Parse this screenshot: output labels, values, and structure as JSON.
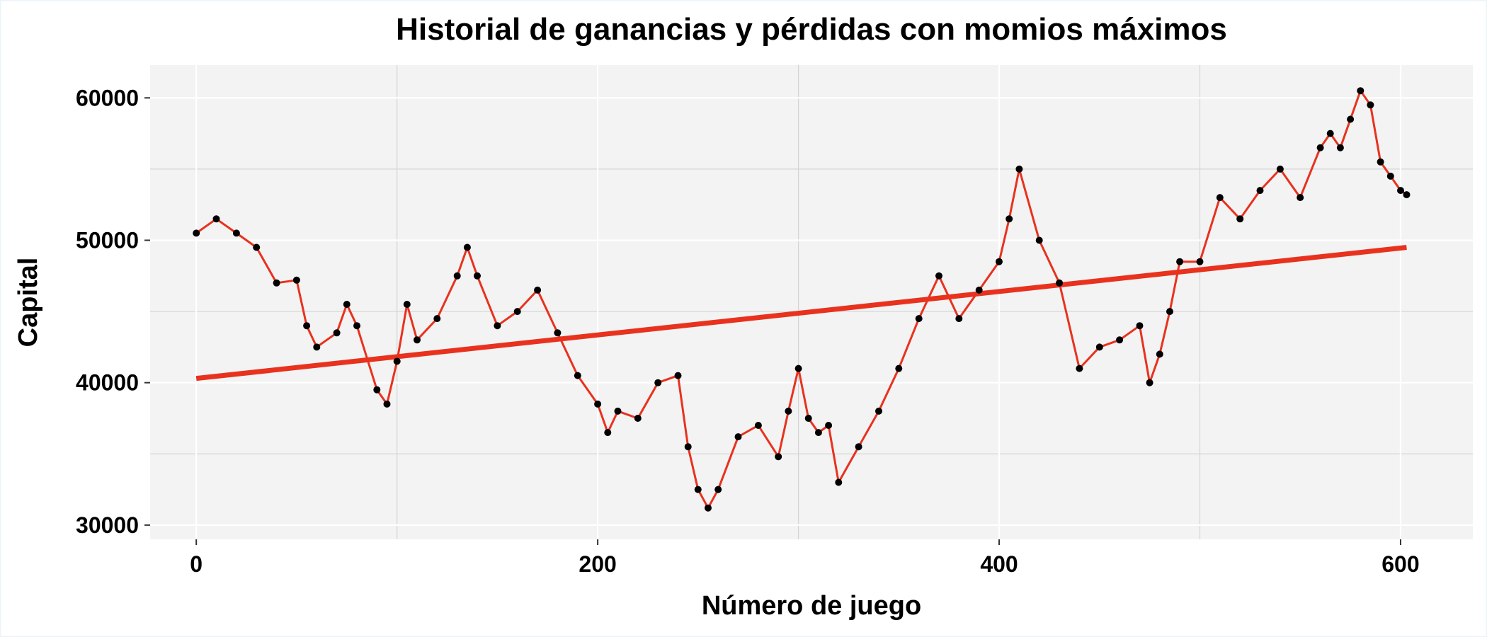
{
  "chart_data": {
    "type": "line",
    "title": "Historial de ganancias y pérdidas con momios máximos",
    "xlabel": "Número de juego",
    "ylabel": "Capital",
    "xlim": [
      -23,
      636
    ],
    "ylim": [
      29000,
      62300
    ],
    "xticks": [
      0,
      200,
      400,
      600
    ],
    "xtick_labels": [
      "0",
      "200",
      "400",
      "600"
    ],
    "yticks": [
      30000,
      40000,
      50000,
      60000
    ],
    "ytick_labels": [
      "30000",
      "40000",
      "50000",
      "60000"
    ],
    "grid": true,
    "legend": "none",
    "colors": {
      "line": "#e8321e",
      "points": "#000000",
      "trend": "#e8321e",
      "panel": "#f3f3f3",
      "grid": "#d4d4d4"
    },
    "series": [
      {
        "kind": "line-points",
        "x": [
          0,
          10,
          20,
          30,
          40,
          50,
          55,
          60,
          70,
          75,
          80,
          90,
          95,
          100,
          105,
          110,
          120,
          130,
          135,
          140,
          150,
          160,
          170,
          180,
          190,
          200,
          205,
          210,
          220,
          230,
          240,
          245,
          250,
          255,
          260,
          270,
          280,
          290,
          295,
          300,
          305,
          310,
          315,
          320,
          330,
          340,
          350,
          360,
          370,
          380,
          390,
          400,
          405,
          410,
          420,
          430,
          440,
          450,
          460,
          470,
          475,
          480,
          485,
          490,
          500,
          510,
          520,
          530,
          540,
          550,
          560,
          565,
          570,
          575,
          580,
          585,
          590,
          595,
          600,
          603
        ],
        "y": [
          50500,
          51500,
          50500,
          49500,
          47000,
          47200,
          44000,
          42500,
          43500,
          45500,
          44000,
          39500,
          38500,
          41500,
          45500,
          43000,
          44500,
          47500,
          49500,
          47500,
          44000,
          45000,
          46500,
          43500,
          40500,
          38500,
          36500,
          38000,
          37500,
          40000,
          40500,
          35500,
          32500,
          31200,
          32500,
          36200,
          37000,
          34800,
          38000,
          41000,
          37500,
          36500,
          37000,
          33000,
          35500,
          38000,
          41000,
          44500,
          47500,
          44500,
          46500,
          48500,
          51500,
          55000,
          50000,
          47000,
          41000,
          42500,
          43000,
          44000,
          40000,
          42000,
          45000,
          48500,
          48500,
          53000,
          51500,
          53500,
          55000,
          53000,
          56500,
          57500,
          56500,
          58500,
          60500,
          59500,
          55500,
          54500,
          53500,
          53200
        ]
      },
      {
        "kind": "trend",
        "x": [
          0,
          603
        ],
        "y": [
          40300,
          49500
        ]
      }
    ]
  }
}
